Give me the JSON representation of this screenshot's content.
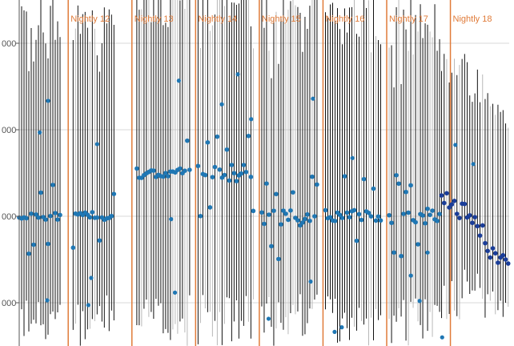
{
  "chart_data": {
    "type": "scatter",
    "title": "",
    "xlabel": "",
    "ylabel": "",
    "ylim": [
      1.5,
      5.5
    ],
    "y_ticks": [
      {
        "value": 2,
        "label": "000"
      },
      {
        "value": 3,
        "label": "000"
      },
      {
        "value": 4,
        "label": "000"
      },
      {
        "value": 5,
        "label": "000"
      }
    ],
    "xlim": [
      0,
      100
    ],
    "grid": true,
    "release_markers": [
      {
        "x": 10.0,
        "label": "Nightly 12"
      },
      {
        "x": 23.0,
        "label": "Nightly 13"
      },
      {
        "x": 36.0,
        "label": "Nightly 14"
      },
      {
        "x": 49.0,
        "label": "Nightly 15"
      },
      {
        "x": 62.0,
        "label": "Nightly 16"
      },
      {
        "x": 75.0,
        "label": "Nightly 17"
      },
      {
        "x": 88.0,
        "label": "Nightly 18"
      }
    ],
    "groups": [
      {
        "x_start": 0,
        "x_end": 8.5,
        "base": 3.0,
        "scatter": 0.08,
        "rise": 2.2,
        "drop": 2.6,
        "lo_floor": 1.5
      },
      {
        "x_start": 11,
        "x_end": 19.5,
        "base": 3.0,
        "scatter": 0.1,
        "rise": 2.2,
        "drop": 2.6,
        "lo_floor": 1.5
      },
      {
        "x_start": 24,
        "x_end": 34.8,
        "base": 3.5,
        "scatter": 0.12,
        "rise": 2.0,
        "drop": 2.4,
        "lo_floor": 1.5
      },
      {
        "x_start": 36.5,
        "x_end": 47.8,
        "base": 3.5,
        "scatter": 0.2,
        "rise": 2.0,
        "drop": 2.4,
        "lo_floor": 1.5
      },
      {
        "x_start": 49.5,
        "x_end": 60.8,
        "base": 3.0,
        "scatter": 0.22,
        "rise": 2.2,
        "drop": 2.6,
        "lo_floor": 1.5
      },
      {
        "x_start": 62.5,
        "x_end": 73.8,
        "base": 3.0,
        "scatter": 0.15,
        "rise": 2.2,
        "drop": 2.6,
        "lo_floor": 1.5
      },
      {
        "x_start": 75.5,
        "x_end": 86.0,
        "base": 3.0,
        "scatter": 0.18,
        "rise": 2.2,
        "drop": 2.6,
        "lo_floor": 1.5
      },
      {
        "x_start": 86.2,
        "x_end": 100,
        "base": 2.6,
        "scatter": 0.2,
        "rise": 1.6,
        "drop": 2.0,
        "lo_floor": 1.8
      }
    ],
    "colors": {
      "point": "#1f77b4",
      "point_late": "#1a3d99",
      "whisker": "#111111",
      "whisker_light": "#b8b8b8",
      "release_line": "#e07b39",
      "grid": "#d9d9d9"
    }
  }
}
